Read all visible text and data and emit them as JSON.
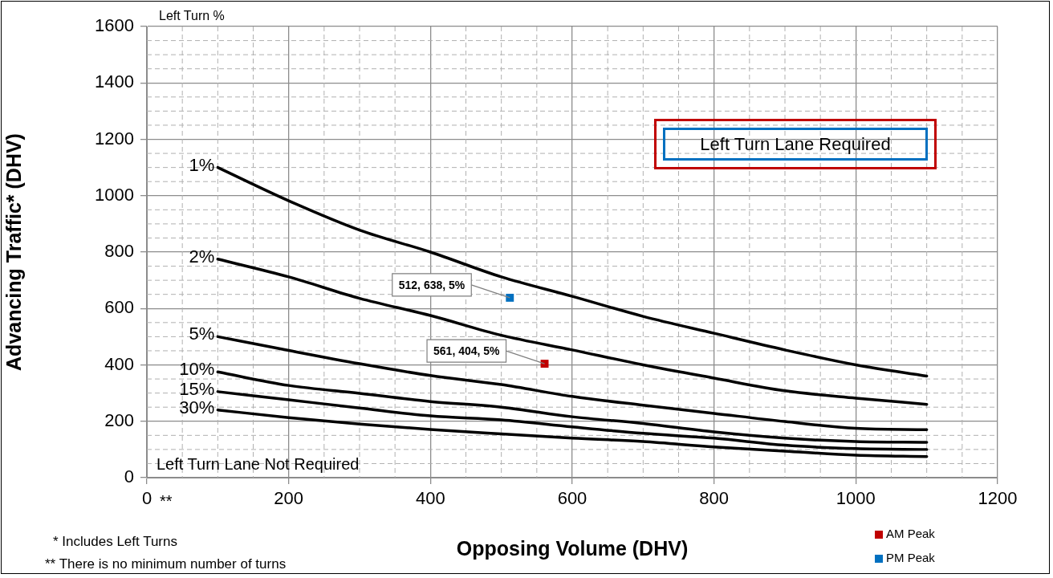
{
  "chart_data": {
    "type": "line",
    "xlabel": "Opposing Volume (DHV)",
    "ylabel": "Advancing Traffic* (DHV)",
    "x": [
      100,
      200,
      300,
      400,
      500,
      600,
      700,
      800,
      900,
      1000,
      1100
    ],
    "series": [
      {
        "name": "1%",
        "color": "#000000",
        "marker": "none",
        "values": [
          1100,
          982,
          878,
          800,
          712,
          643,
          572,
          512,
          453,
          400,
          360
        ]
      },
      {
        "name": "2%",
        "color": "#000000",
        "marker": "none",
        "values": [
          775,
          712,
          636,
          575,
          505,
          453,
          400,
          353,
          308,
          282,
          260
        ]
      },
      {
        "name": "5%",
        "color": "#000000",
        "marker": "none",
        "values": [
          500,
          451,
          404,
          362,
          330,
          288,
          257,
          228,
          199,
          175,
          170
        ]
      },
      {
        "name": "10%",
        "color": "#000000",
        "marker": "none",
        "values": [
          375,
          327,
          299,
          270,
          250,
          216,
          192,
          162,
          140,
          128,
          125
        ]
      },
      {
        "name": "15%",
        "color": "#000000",
        "marker": "none",
        "values": [
          305,
          276,
          247,
          219,
          205,
          180,
          157,
          140,
          115,
          103,
          100
        ]
      },
      {
        "name": "30%",
        "color": "#000000",
        "marker": "none",
        "values": [
          240,
          213,
          190,
          171,
          155,
          140,
          128,
          109,
          94,
          80,
          75
        ]
      },
      {
        "name": "AM Peak",
        "type": "scatter",
        "color": "#c00000",
        "marker": "square",
        "x": [
          561
        ],
        "values": [
          404
        ]
      },
      {
        "name": "PM Peak",
        "type": "scatter",
        "color": "#0070c0",
        "marker": "square",
        "x": [
          512
        ],
        "values": [
          638
        ]
      }
    ],
    "xlim": [
      0,
      1200
    ],
    "xticks": [
      0,
      200,
      400,
      600,
      800,
      1000,
      1200
    ],
    "ylim": [
      0,
      1600
    ],
    "yticks": [
      0,
      200,
      400,
      600,
      800,
      1000,
      1200,
      1400,
      1600
    ],
    "grid": true,
    "legend": "bottom right",
    "annotations": [
      "Left Turn %",
      "Left Turn Lane Required",
      "Left Turn Lane Not Required",
      "**",
      "* Includes Left Turns",
      "** There is no minimum number of turns",
      {
        "text": "561, 404, 5%",
        "x": 561,
        "y": 404
      },
      {
        "text": "512, 638, 5%",
        "x": 512,
        "y": 638
      }
    ]
  }
}
